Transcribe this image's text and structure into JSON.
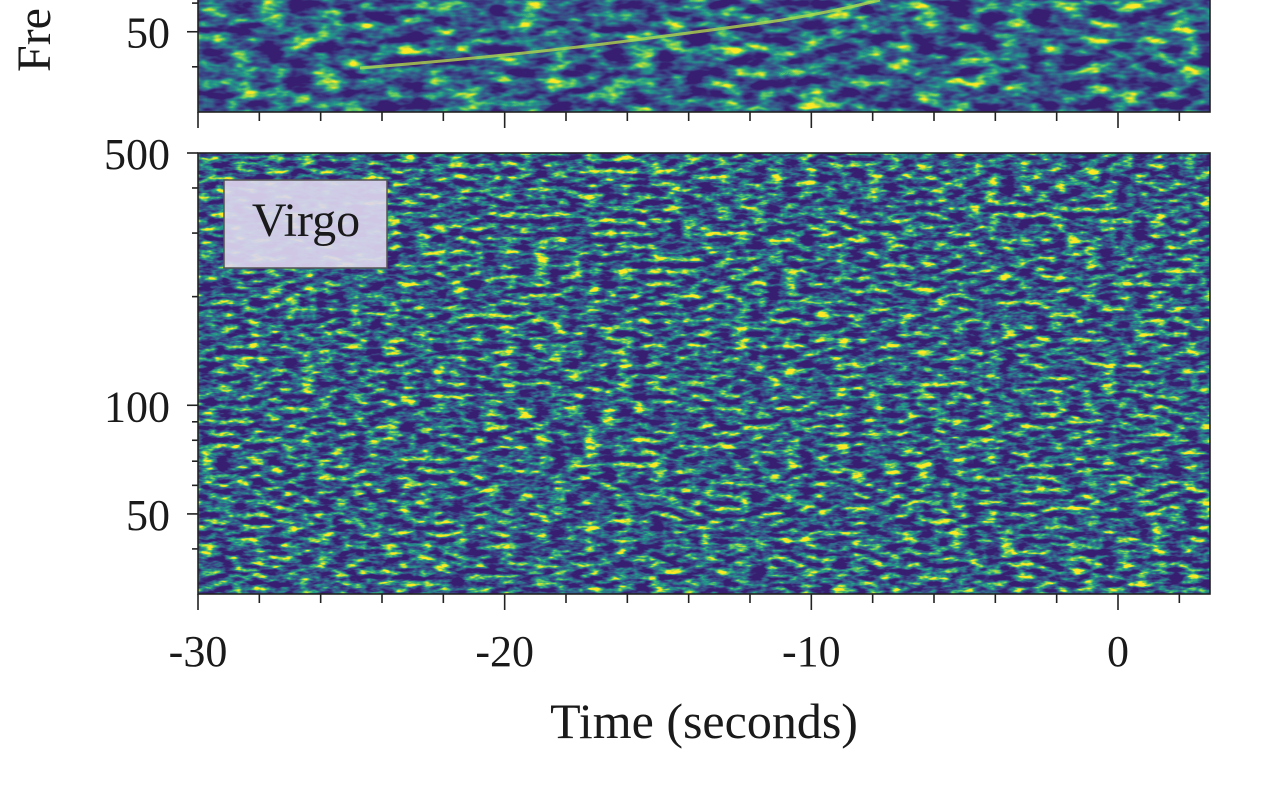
{
  "chart_data": [
    {
      "type": "spectrogram",
      "ylabel": "Fre",
      "log_y": true,
      "xlim": [
        -30,
        3
      ],
      "xticks": [
        -30,
        -20,
        -10,
        0
      ],
      "xticks_minor": [
        -28,
        -26,
        -24,
        -22,
        -18,
        -16,
        -14,
        -12,
        -8,
        -6,
        -4,
        -2,
        2
      ],
      "ylim": [
        30,
        500
      ],
      "yticks": [
        50
      ],
      "yticks_minor": [
        40,
        60,
        70,
        80,
        90,
        200,
        300,
        400
      ]
    },
    {
      "type": "spectrogram",
      "annotation": "Virgo",
      "xlabel": "Time (seconds)",
      "log_y": true,
      "xlim": [
        -30,
        3
      ],
      "xticks": [
        -30,
        -20,
        -10,
        0
      ],
      "xticks_minor": [
        -28,
        -26,
        -24,
        -22,
        -18,
        -16,
        -14,
        -12,
        -8,
        -6,
        -4,
        -2,
        2
      ],
      "ylim": [
        30,
        500
      ],
      "yticks": [
        500,
        100,
        50
      ],
      "yticks_minor": [
        40,
        60,
        70,
        80,
        90,
        200,
        300,
        400
      ]
    }
  ]
}
